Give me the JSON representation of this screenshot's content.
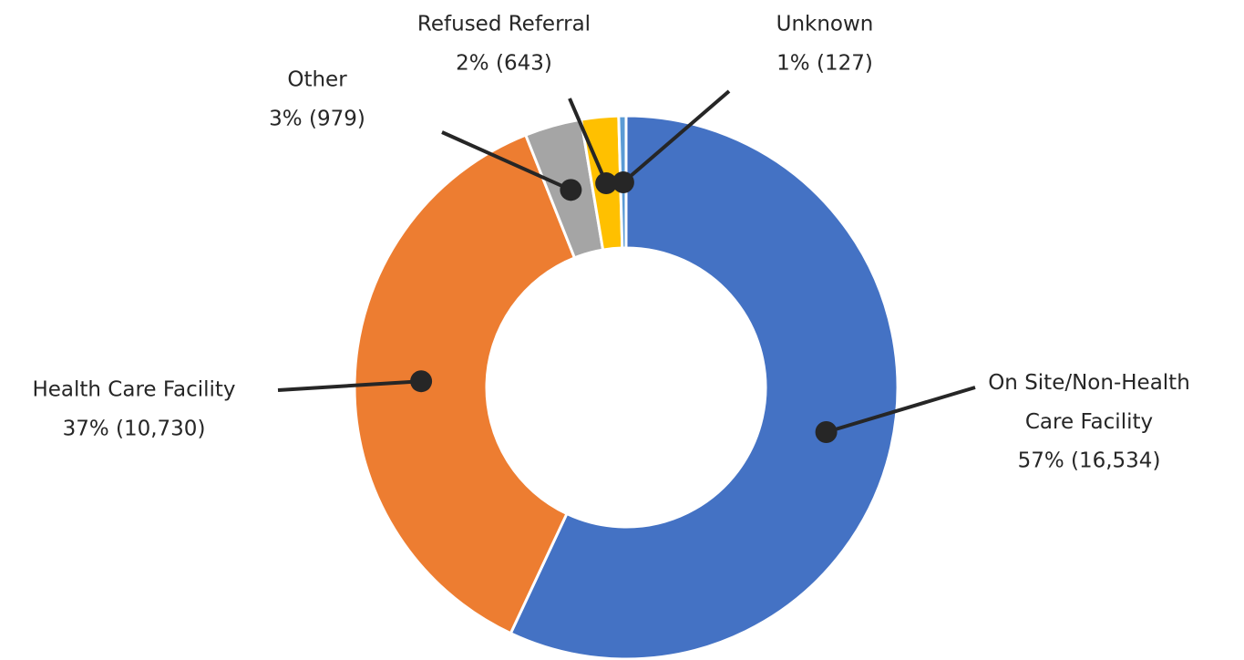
{
  "chart_data": {
    "type": "donut",
    "categories": [
      "On Site/Non-Health Care Facility",
      "Health Care Facility",
      "Other",
      "Refused Referral",
      "Unknown"
    ],
    "values": [
      16534,
      10730,
      979,
      643,
      127
    ],
    "value_labels": [
      "57% (16,534)",
      "37% (10,730)",
      "3% (979)",
      "2% (643)",
      "1% (127)"
    ],
    "colors": [
      "#4472c4",
      "#ed7d31",
      "#a5a5a5",
      "#ffc000",
      "#5b9bd5"
    ]
  }
}
